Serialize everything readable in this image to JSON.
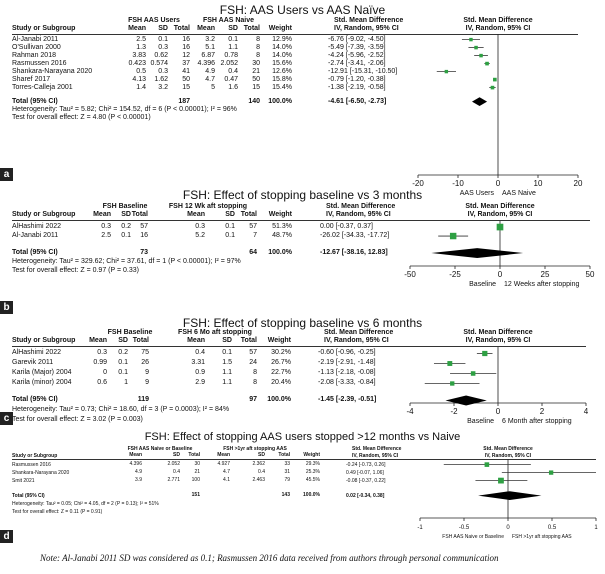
{
  "panels": [
    {
      "label": "a",
      "title": "FSH: AAS Users vs AAS Naïve",
      "group1": "FSH AAS Users",
      "group2": "FSH AAS Naive",
      "headers": {
        "study": "Study or Subgroup",
        "m1": "Mean",
        "sd1": "SD",
        "n1": "Total",
        "m2": "Mean",
        "sd2": "SD",
        "n2": "Total",
        "w": "Weight",
        "smd_title": "Std. Mean Difference",
        "smd_sub": "IV, Random, 95% CI",
        "plot_title": "Std. Mean Difference",
        "plot_sub": "IV, Random, 95% CI"
      },
      "rows": [
        {
          "study": "Al-Janabi 2011",
          "m1": "2.5",
          "sd1": "0.1",
          "n1": "16",
          "m2": "3.2",
          "sd2": "0.1",
          "n2": "8",
          "w": "12.9%",
          "ci": "-6.76 [-9.02, -4.50]"
        },
        {
          "study": "O'Sullivan 2000",
          "m1": "1.3",
          "sd1": "0.3",
          "n1": "16",
          "m2": "5.1",
          "sd2": "1.1",
          "n2": "8",
          "w": "14.0%",
          "ci": "-5.49 [-7.39, -3.59]"
        },
        {
          "study": "Rahman 2018",
          "m1": "3.83",
          "sd1": "0.62",
          "n1": "12",
          "m2": "6.87",
          "sd2": "0.78",
          "n2": "8",
          "w": "14.0%",
          "ci": "-4.24 [-5.96, -2.52]"
        },
        {
          "study": "Rasmussen 2016",
          "m1": "0.423",
          "sd1": "0.574",
          "n1": "37",
          "m2": "4.396",
          "sd2": "2.052",
          "n2": "30",
          "w": "15.6%",
          "ci": "-2.74 [-3.41, -2.06]"
        },
        {
          "study": "Shankara-Narayana 2020",
          "m1": "0.5",
          "sd1": "0.3",
          "n1": "41",
          "m2": "4.9",
          "sd2": "0.4",
          "n2": "21",
          "w": "12.6%",
          "ci": "-12.91 [-15.31, -10.50]"
        },
        {
          "study": "Sharef 2017",
          "m1": "4.13",
          "sd1": "1.62",
          "n1": "50",
          "m2": "4.7",
          "sd2": "0.47",
          "n2": "50",
          "w": "15.8%",
          "ci": "-0.79 [-1.20, -0.38]"
        },
        {
          "study": "Torres-Calleja 2001",
          "m1": "1.4",
          "sd1": "3.2",
          "n1": "15",
          "m2": "5",
          "sd2": "1.6",
          "n2": "15",
          "w": "15.4%",
          "ci": "-1.38 [-2.19, -0.58]"
        }
      ],
      "total": {
        "label": "Total (95% CI)",
        "n1": "187",
        "n2": "140",
        "w": "100.0%",
        "ci": "-4.61 [-6.50, -2.73]"
      },
      "het": "Heterogeneity: Tau² = 5.82; Chi² = 154.52, df = 6 (P < 0.00001); I² = 96%",
      "overall": "Test for overall effect: Z = 4.80 (P < 0.00001)",
      "axis_left_label": "AAS Users",
      "axis_right_label": "AAS Naive",
      "chart_data": {
        "type": "forest",
        "xlim": [
          -20,
          20
        ],
        "ticks": [
          "-20",
          "-10",
          "0",
          "10",
          "20"
        ],
        "tick_values": [
          -20,
          -10,
          0,
          10,
          20
        ],
        "points": [
          {
            "study": "Al-Janabi 2011",
            "est": -6.76,
            "lo": -9.02,
            "hi": -4.5,
            "weight": 12.9
          },
          {
            "study": "O'Sullivan 2000",
            "est": -5.49,
            "lo": -7.39,
            "hi": -3.59,
            "weight": 14.0
          },
          {
            "study": "Rahman 2018",
            "est": -4.24,
            "lo": -5.96,
            "hi": -2.52,
            "weight": 14.0
          },
          {
            "study": "Rasmussen 2016",
            "est": -2.74,
            "lo": -3.41,
            "hi": -2.06,
            "weight": 15.6
          },
          {
            "study": "Shankara-Narayana 2020",
            "est": -12.91,
            "lo": -15.31,
            "hi": -10.5,
            "weight": 12.6
          },
          {
            "study": "Sharef 2017",
            "est": -0.79,
            "lo": -1.2,
            "hi": -0.38,
            "weight": 15.8
          },
          {
            "study": "Torres-Calleja 2001",
            "est": -1.38,
            "lo": -2.19,
            "hi": -0.58,
            "weight": 15.4
          }
        ],
        "pooled": {
          "est": -4.61,
          "lo": -6.5,
          "hi": -2.73
        }
      }
    },
    {
      "label": "b",
      "title": "FSH: Effect of stopping baseline vs 3 months",
      "group1": "FSH Baseline",
      "group2": "FSH 12 Wk aft stopping",
      "headers": {
        "study": "Study or Subgroup",
        "m1": "Mean",
        "sd1": "SD",
        "n1": "Total",
        "m2": "Mean",
        "sd2": "SD",
        "n2": "Total",
        "w": "Weight",
        "smd_title": "Std. Mean Difference",
        "smd_sub": "IV, Random, 95% CI",
        "plot_title": "Std. Mean Difference",
        "plot_sub": "IV, Random, 95% CI"
      },
      "rows": [
        {
          "study": "AlHashimi 2022",
          "m1": "0.3",
          "sd1": "0.2",
          "n1": "57",
          "m2": "0.3",
          "sd2": "0.1",
          "n2": "57",
          "w": "51.3%",
          "ci": "0.00 [-0.37, 0.37]"
        },
        {
          "study": "Al-Janabi 2011",
          "m1": "2.5",
          "sd1": "0.1",
          "n1": "16",
          "m2": "5.2",
          "sd2": "0.1",
          "n2": "7",
          "w": "48.7%",
          "ci": "-26.02 [-34.33, -17.72]"
        }
      ],
      "total": {
        "label": "Total (95% CI)",
        "n1": "73",
        "n2": "64",
        "w": "100.0%",
        "ci": "-12.67 [-38.16, 12.83]"
      },
      "het": "Heterogeneity: Tau² = 329.62; Chi² = 37.61, df = 1 (P < 0.00001); I² = 97%",
      "overall": "Test for overall effect: Z = 0.97 (P = 0.33)",
      "axis_left_label": "Baseline",
      "axis_right_label": "12 Weeks after stopping",
      "chart_data": {
        "type": "forest",
        "xlim": [
          -50,
          50
        ],
        "ticks": [
          "-50",
          "-25",
          "0",
          "25",
          "50"
        ],
        "tick_values": [
          -50,
          -25,
          0,
          25,
          50
        ],
        "points": [
          {
            "study": "AlHashimi 2022",
            "est": 0.0,
            "lo": -0.37,
            "hi": 0.37,
            "weight": 51.3
          },
          {
            "study": "Al-Janabi 2011",
            "est": -26.02,
            "lo": -34.33,
            "hi": -17.72,
            "weight": 48.7
          }
        ],
        "pooled": {
          "est": -12.67,
          "lo": -38.16,
          "hi": 12.83
        }
      }
    },
    {
      "label": "c",
      "title": "FSH: Effect of stopping baseline vs 6 months",
      "group1": "FSH Baseline",
      "group2": "FSH 6 Mo aft stopping",
      "headers": {
        "study": "Study or Subgroup",
        "m1": "Mean",
        "sd1": "SD",
        "n1": "Total",
        "m2": "Mean",
        "sd2": "SD",
        "n2": "Total",
        "w": "Weight",
        "smd_title": "Std. Mean Difference",
        "smd_sub": "IV, Random, 95% CI",
        "plot_title": "Std. Mean Difference",
        "plot_sub": "IV, Random, 95% CI"
      },
      "rows": [
        {
          "study": "AlHashimi 2022",
          "m1": "0.3",
          "sd1": "0.2",
          "n1": "75",
          "m2": "0.4",
          "sd2": "0.1",
          "n2": "57",
          "w": "30.2%",
          "ci": "-0.60 [-0.96, -0.25]"
        },
        {
          "study": "Garevik 2011",
          "m1": "0.99",
          "sd1": "0.1",
          "n1": "26",
          "m2": "3.31",
          "sd2": "1.5",
          "n2": "24",
          "w": "26.7%",
          "ci": "-2.19 [-2.91, -1.48]"
        },
        {
          "study": "Karila (Major) 2004",
          "m1": "0",
          "sd1": "0.1",
          "n1": "9",
          "m2": "0.9",
          "sd2": "1.1",
          "n2": "8",
          "w": "22.7%",
          "ci": "-1.13 [-2.18, -0.08]"
        },
        {
          "study": "Karila (minor) 2004",
          "m1": "0.6",
          "sd1": "1",
          "n1": "9",
          "m2": "2.9",
          "sd2": "1.1",
          "n2": "8",
          "w": "20.4%",
          "ci": "-2.08 [-3.33, -0.84]"
        }
      ],
      "total": {
        "label": "Total (95% CI)",
        "n1": "119",
        "n2": "97",
        "w": "100.0%",
        "ci": "-1.45 [-2.39, -0.51]"
      },
      "het": "Heterogeneity: Tau² = 0.73; Chi² = 18.60, df = 3 (P = 0.0003); I² = 84%",
      "overall": "Test for overall effect: Z = 3.02 (P = 0.003)",
      "axis_left_label": "Baseline",
      "axis_right_label": "6 Month after stopping",
      "chart_data": {
        "type": "forest",
        "xlim": [
          -4,
          4
        ],
        "ticks": [
          "-4",
          "-2",
          "0",
          "2",
          "4"
        ],
        "tick_values": [
          -4,
          -2,
          0,
          2,
          4
        ],
        "points": [
          {
            "study": "AlHashimi 2022",
            "est": -0.6,
            "lo": -0.96,
            "hi": -0.25,
            "weight": 30.2
          },
          {
            "study": "Garevik 2011",
            "est": -2.19,
            "lo": -2.91,
            "hi": -1.48,
            "weight": 26.7
          },
          {
            "study": "Karila (Major) 2004",
            "est": -1.13,
            "lo": -2.18,
            "hi": -0.08,
            "weight": 22.7
          },
          {
            "study": "Karila (minor) 2004",
            "est": -2.08,
            "lo": -3.33,
            "hi": -0.84,
            "weight": 20.4
          }
        ],
        "pooled": {
          "est": -1.45,
          "lo": -2.39,
          "hi": -0.51
        }
      }
    },
    {
      "label": "d",
      "title": "FSH: Effect of stopping AAS users stopped >12 months vs Naive",
      "group1": "FSH AAS Naive or Baseline",
      "group2": "FSH >1yr aft stopping AAS",
      "headers": {
        "study": "Study or Subgroup",
        "m1": "Mean",
        "sd1": "SD",
        "n1": "Total",
        "m2": "Mean",
        "sd2": "SD",
        "n2": "Total",
        "w": "Weight",
        "smd_title": "Std. Mean Difference",
        "smd_sub": "IV, Random, 95% CI",
        "plot_title": "Std. Mean Difference",
        "plot_sub": "IV, Random, 95% CI"
      },
      "rows": [
        {
          "study": "Rasmussen 2016",
          "m1": "4.396",
          "sd1": "2.052",
          "n1": "30",
          "m2": "4.927",
          "sd2": "2.362",
          "n2": "33",
          "w": "29.3%",
          "ci": "-0.24 [-0.73, 0.26]"
        },
        {
          "study": "Shankara-Narayana 2020",
          "m1": "4.9",
          "sd1": "0.4",
          "n1": "21",
          "m2": "4.7",
          "sd2": "0.4",
          "n2": "31",
          "w": "25.3%",
          "ci": "0.49 [-0.07, 1.06]"
        },
        {
          "study": "Smit 2021",
          "m1": "3.9",
          "sd1": "2.771",
          "n1": "100",
          "m2": "4.1",
          "sd2": "2.463",
          "n2": "79",
          "w": "45.5%",
          "ci": "-0.08 [-0.37, 0.22]"
        }
      ],
      "total": {
        "label": "Total (95% CI)",
        "n1": "151",
        "n2": "143",
        "w": "100.0%",
        "ci": "0.02 [-0.34, 0.38]"
      },
      "het": "Heterogeneity: Tau² = 0.05; Chi² = 4.05, df = 2 (P = 0.13); I² = 51%",
      "overall": "Test for overall effect: Z = 0.11 (P = 0.91)",
      "axis_left_label": "FSH AAS Naive or Baseline",
      "axis_right_label": "FSH >1yr aft stopping AAS",
      "chart_data": {
        "type": "forest",
        "xlim": [
          -1,
          1
        ],
        "ticks": [
          "-1",
          "-0.5",
          "0",
          "0.5",
          "1"
        ],
        "tick_values": [
          -1,
          -0.5,
          0,
          0.5,
          1
        ],
        "points": [
          {
            "study": "Rasmussen 2016",
            "est": -0.24,
            "lo": -0.73,
            "hi": 0.26,
            "weight": 29.3
          },
          {
            "study": "Shankara-Narayana 2020",
            "est": 0.49,
            "lo": -0.07,
            "hi": 1.06,
            "weight": 25.3
          },
          {
            "study": "Smit 2021",
            "est": -0.08,
            "lo": -0.37,
            "hi": 0.22,
            "weight": 45.5
          }
        ],
        "pooled": {
          "est": 0.02,
          "lo": -0.34,
          "hi": 0.38
        }
      }
    }
  ],
  "note": "Note: Al-Janabi 2011 SD was considered as 0.1; Rasmussen 2016 data received from authors through personal communication",
  "colors": {
    "marker": "#2ea043",
    "diamond": "#000000",
    "badge": "#222222"
  }
}
